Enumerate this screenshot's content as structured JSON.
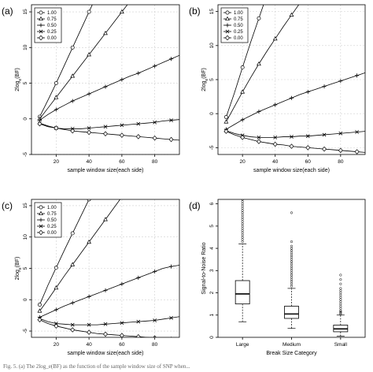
{
  "chart_data": [
    {
      "panel": "(a)",
      "type": "line",
      "xlabel": "sample window size(each side)",
      "ylabel": "2log_e(BF)",
      "xlim": [
        5,
        95
      ],
      "ylim": [
        -5,
        16
      ],
      "xticks": [
        20,
        40,
        60,
        80
      ],
      "yticks": [
        -5,
        0,
        5,
        10,
        15
      ],
      "grid": true,
      "legend_position": "top-left",
      "x": [
        10,
        15,
        20,
        25,
        30,
        35,
        40,
        45,
        50,
        55,
        60,
        65,
        70,
        75,
        80,
        85,
        90,
        95
      ],
      "series": [
        {
          "name": "1.00",
          "marker": "circle",
          "values": [
            0.3,
            2.6,
            5.0,
            7.5,
            10.0,
            12.5,
            15.0,
            17.5,
            null,
            null,
            null,
            null,
            null,
            null,
            null,
            null,
            null,
            null
          ]
        },
        {
          "name": "0.75",
          "marker": "triangle",
          "values": [
            0.0,
            1.5,
            3.0,
            4.5,
            6.0,
            7.5,
            9.0,
            10.5,
            12.0,
            13.5,
            15.0,
            16.5,
            null,
            null,
            null,
            null,
            null,
            null
          ]
        },
        {
          "name": "0.50",
          "marker": "plus",
          "values": [
            -0.2,
            0.6,
            1.3,
            1.9,
            2.5,
            3.0,
            3.5,
            4.0,
            4.5,
            5.0,
            5.5,
            6.0,
            6.4,
            6.9,
            7.4,
            7.9,
            8.4,
            8.9
          ]
        },
        {
          "name": "0.25",
          "marker": "cross",
          "values": [
            -0.6,
            -1.0,
            -1.3,
            -1.4,
            -1.4,
            -1.4,
            -1.3,
            -1.2,
            -1.1,
            -1.0,
            -0.9,
            -0.8,
            -0.7,
            -0.6,
            -0.5,
            -0.3,
            -0.2,
            -0.1
          ]
        },
        {
          "name": "0.00",
          "marker": "diamond",
          "values": [
            -0.7,
            -1.1,
            -1.3,
            -1.5,
            -1.7,
            -1.8,
            -1.9,
            -2.0,
            -2.1,
            -2.2,
            -2.3,
            -2.4,
            -2.5,
            -2.6,
            -2.7,
            -2.8,
            -2.9,
            -3.0
          ]
        }
      ]
    },
    {
      "panel": "(b)",
      "type": "line",
      "xlabel": "sample window size(each side)",
      "ylabel": "2log_e(BF)",
      "xlim": [
        5,
        95
      ],
      "ylim": [
        -6,
        16
      ],
      "xticks": [
        20,
        40,
        60,
        80
      ],
      "yticks": [
        -5,
        0,
        5,
        10,
        15
      ],
      "grid": true,
      "legend_position": "top-left",
      "x": [
        10,
        15,
        20,
        25,
        30,
        35,
        40,
        45,
        50,
        55,
        60,
        65,
        70,
        75,
        80,
        85,
        90,
        95
      ],
      "series": [
        {
          "name": "1.00",
          "marker": "circle",
          "values": [
            -0.5,
            3.0,
            6.8,
            10.5,
            14.0,
            17.5,
            null,
            null,
            null,
            null,
            null,
            null,
            null,
            null,
            null,
            null,
            null,
            null
          ]
        },
        {
          "name": "0.75",
          "marker": "triangle",
          "values": [
            -1.2,
            1.0,
            3.2,
            5.3,
            7.3,
            9.2,
            11.0,
            12.8,
            14.5,
            16.2,
            null,
            null,
            null,
            null,
            null,
            null,
            null,
            null
          ]
        },
        {
          "name": "0.50",
          "marker": "plus",
          "values": [
            -2.3,
            -1.6,
            -0.9,
            -0.3,
            0.3,
            0.8,
            1.3,
            1.8,
            2.3,
            2.8,
            3.2,
            3.6,
            4.0,
            4.4,
            4.8,
            5.2,
            5.6,
            6.0
          ]
        },
        {
          "name": "0.25",
          "marker": "cross",
          "values": [
            -2.5,
            -2.9,
            -3.2,
            -3.4,
            -3.5,
            -3.5,
            -3.5,
            -3.4,
            -3.4,
            -3.3,
            -3.3,
            -3.2,
            -3.1,
            -3.0,
            -2.9,
            -2.8,
            -2.7,
            -2.6
          ]
        },
        {
          "name": "0.00",
          "marker": "diamond",
          "values": [
            -2.6,
            -3.1,
            -3.5,
            -3.8,
            -4.1,
            -4.3,
            -4.5,
            -4.6,
            -4.8,
            -4.9,
            -5.0,
            -5.1,
            -5.2,
            -5.3,
            -5.4,
            -5.5,
            -5.6,
            -5.7
          ]
        }
      ]
    },
    {
      "panel": "(c)",
      "type": "line",
      "xlabel": "sample window size(each side)",
      "ylabel": "2log_e(BF)",
      "xlim": [
        5,
        95
      ],
      "ylim": [
        -6,
        16
      ],
      "xticks": [
        20,
        40,
        60,
        80
      ],
      "yticks": [
        -5,
        0,
        5,
        10,
        15
      ],
      "grid": true,
      "legend_position": "top-left",
      "x": [
        10,
        15,
        20,
        25,
        30,
        35,
        40,
        45,
        50,
        55,
        60,
        65,
        70,
        75,
        80,
        85,
        90,
        95
      ],
      "series": [
        {
          "name": "1.00",
          "marker": "circle",
          "values": [
            -0.8,
            2.3,
            5.1,
            7.9,
            10.6,
            13.3,
            16.0,
            null,
            null,
            null,
            null,
            null,
            null,
            null,
            null,
            null,
            null,
            null
          ]
        },
        {
          "name": "0.75",
          "marker": "triangle",
          "values": [
            -1.8,
            0.0,
            1.9,
            3.8,
            5.6,
            7.4,
            9.2,
            11.0,
            12.8,
            14.6,
            16.4,
            null,
            null,
            null,
            null,
            null,
            null,
            null
          ]
        },
        {
          "name": "0.50",
          "marker": "plus",
          "values": [
            -2.8,
            -2.2,
            -1.6,
            -1.0,
            -0.5,
            0.0,
            0.5,
            1.0,
            1.5,
            2.0,
            2.5,
            3.0,
            3.5,
            4.0,
            4.5,
            5.0,
            5.3,
            5.5
          ]
        },
        {
          "name": "0.25",
          "marker": "cross",
          "values": [
            -3.0,
            -3.5,
            -3.8,
            -3.9,
            -4.0,
            -4.0,
            -4.0,
            -4.0,
            -3.9,
            -3.8,
            -3.7,
            -3.6,
            -3.5,
            -3.4,
            -3.3,
            -3.1,
            -2.9,
            -2.7
          ]
        },
        {
          "name": "0.00",
          "marker": "diamond",
          "values": [
            -3.2,
            -3.8,
            -4.2,
            -4.5,
            -4.8,
            -5.0,
            -5.2,
            -5.4,
            -5.5,
            -5.6,
            -5.7,
            -5.8,
            -5.9,
            -6.0,
            -6.1,
            -6.2,
            -6.3,
            -6.4
          ]
        }
      ]
    },
    {
      "panel": "(d)",
      "type": "boxplot",
      "xlabel": "Break Size Category",
      "ylabel": "Signal-to-Noise Ratio",
      "ylim": [
        0,
        6.2
      ],
      "yticks": [
        0,
        1,
        2,
        3,
        4,
        5,
        6
      ],
      "grid": false,
      "categories": [
        "Large",
        "Medium",
        "Small"
      ],
      "boxes": [
        {
          "category": "Large",
          "whisker_low": 0.7,
          "q1": 1.5,
          "median": 1.95,
          "q3": 2.55,
          "whisker_high": 4.2,
          "outliers": [
            4.3,
            4.4,
            4.5,
            4.6,
            4.7,
            4.8,
            4.9,
            5.0,
            5.1,
            5.2,
            5.3,
            5.4,
            5.5,
            5.6,
            5.7,
            5.8,
            5.9,
            6.0,
            6.1,
            6.2
          ]
        },
        {
          "category": "Medium",
          "whisker_low": 0.4,
          "q1": 0.85,
          "median": 1.05,
          "q3": 1.4,
          "whisker_high": 2.2,
          "outliers": [
            2.3,
            2.4,
            2.5,
            2.6,
            2.7,
            2.8,
            2.9,
            3.0,
            3.1,
            3.2,
            3.3,
            3.4,
            3.5,
            3.6,
            3.7,
            3.8,
            3.9,
            4.0,
            4.1,
            4.3,
            5.6
          ]
        },
        {
          "category": "Small",
          "whisker_low": 0.05,
          "q1": 0.25,
          "median": 0.38,
          "q3": 0.55,
          "whisker_high": 1.0,
          "outliers": [
            1.05,
            1.1,
            1.15,
            1.2,
            1.3,
            1.4,
            1.5,
            1.6,
            1.7,
            1.8,
            1.9,
            2.0,
            2.1,
            2.2,
            2.4,
            2.6,
            2.8
          ]
        }
      ]
    }
  ],
  "panel_labels": [
    "(a)",
    "(b)",
    "(c)",
    "(d)"
  ],
  "caption": "Fig. 5. (a) The 2log_e(BF) as the function of the sample window size of SNP when...",
  "colors": {
    "line": "#000000",
    "grid": "#d0d0d0",
    "background": "#ffffff"
  }
}
